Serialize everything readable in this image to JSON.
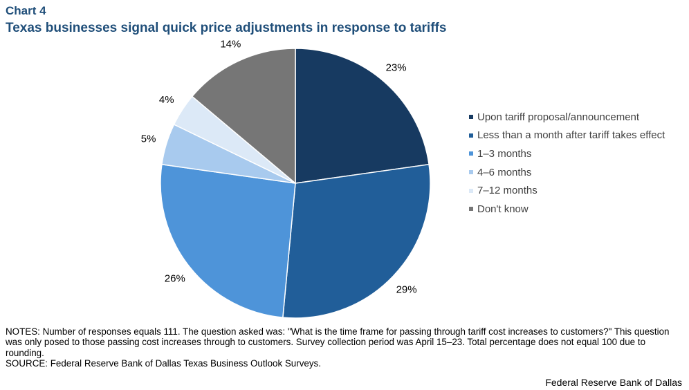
{
  "header": {
    "chart_label": "Chart 4",
    "title": "Texas businesses signal quick price adjustments in response to tariffs"
  },
  "chart_data": {
    "type": "pie",
    "title": "Texas businesses signal quick price adjustments in response to tariffs",
    "categories": [
      "Upon tariff proposal/announcement",
      "Less than a month after tariff takes effect",
      "1–3 months",
      "4–6 months",
      "7–12 months",
      "Don't know"
    ],
    "values": [
      23,
      29,
      26,
      5,
      4,
      14
    ],
    "labels": [
      "23%",
      "29%",
      "26%",
      "5%",
      "4%",
      "14%"
    ],
    "colors": [
      "#173a61",
      "#215e99",
      "#4e94d9",
      "#a8caee",
      "#dce9f7",
      "#767676"
    ],
    "legend_placement": "right",
    "start": "12 o'clock",
    "direction": "clockwise"
  },
  "footer": {
    "notes_line1": "NOTES: Number of responses equals 111. The question asked was: \"What is the time frame for passing through tariff cost increases to customers?\" This question was only posed to those passing cost increases through to customers. Survey collection period was April 15–23. Total percentage does not equal 100 due to rounding.",
    "notes_line2": "SOURCE: Federal Reserve Bank of Dallas Texas Business Outlook Surveys.",
    "credit": "Federal Reserve Bank of Dallas"
  }
}
